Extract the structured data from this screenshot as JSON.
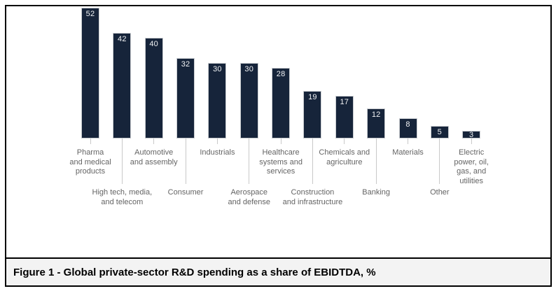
{
  "chart_data": {
    "type": "bar",
    "title": "Global private-sector R&D spending as a share of EBIDTDA, %",
    "unit": "%",
    "axes": "none",
    "value_labels_shown": true,
    "categories": [
      "Pharma and medical products",
      "High tech, media, and telecom",
      "Automotive and assembly",
      "Consumer",
      "Industrials",
      "Aerospace and defense",
      "Healthcare systems and services",
      "Construction and infrastructure",
      "Chemicals and agriculture",
      "Banking",
      "Materials",
      "Other",
      "Electric power, oil, gas, and utilities"
    ],
    "values": [
      52,
      42,
      40,
      32,
      30,
      30,
      28,
      19,
      17,
      12,
      8,
      5,
      3
    ],
    "bars": [
      {
        "category": "Pharma and medical products",
        "value": 52,
        "label_lines": [
          "Pharma",
          "and medical",
          "products"
        ],
        "label_row": "top"
      },
      {
        "category": "High tech, media, and telecom",
        "value": 42,
        "label_lines": [
          "High tech, media,",
          "and telecom"
        ],
        "label_row": "bottom"
      },
      {
        "category": "Automotive and assembly",
        "value": 40,
        "label_lines": [
          "Automotive",
          "and assembly"
        ],
        "label_row": "top"
      },
      {
        "category": "Consumer",
        "value": 32,
        "label_lines": [
          "Consumer"
        ],
        "label_row": "bottom"
      },
      {
        "category": "Industrials",
        "value": 30,
        "label_lines": [
          "Industrials"
        ],
        "label_row": "top"
      },
      {
        "category": "Aerospace and defense",
        "value": 30,
        "label_lines": [
          "Aerospace",
          "and defense"
        ],
        "label_row": "bottom"
      },
      {
        "category": "Healthcare systems and services",
        "value": 28,
        "label_lines": [
          "Healthcare",
          "systems and",
          "services"
        ],
        "label_row": "top"
      },
      {
        "category": "Construction and infrastructure",
        "value": 19,
        "label_lines": [
          "Construction",
          "and infrastructure"
        ],
        "label_row": "bottom"
      },
      {
        "category": "Chemicals and agriculture",
        "value": 17,
        "label_lines": [
          "Chemicals and",
          "agriculture"
        ],
        "label_row": "top"
      },
      {
        "category": "Banking",
        "value": 12,
        "label_lines": [
          "Banking"
        ],
        "label_row": "bottom"
      },
      {
        "category": "Materials",
        "value": 8,
        "label_lines": [
          "Materials"
        ],
        "label_row": "top"
      },
      {
        "category": "Other",
        "value": 5,
        "label_lines": [
          "Other"
        ],
        "label_row": "bottom"
      },
      {
        "category": "Electric power, oil, gas, and utilities",
        "value": 3,
        "label_lines": [
          "Electric",
          "power, oil,",
          "gas, and",
          "utilities"
        ],
        "label_row": "top"
      }
    ],
    "colors": {
      "bar_fill": "#16243a",
      "bar_border": "#c9ccd0",
      "value_label": "#f1f3f5",
      "category_label": "#646464",
      "leader_line": "#c9c9c9",
      "caption_background": "#f3f3f3",
      "frame_border": "#000000"
    }
  },
  "caption": {
    "text": "Figure 1 - Global private-sector R&D spending as a share of EBIDTDA, %"
  }
}
